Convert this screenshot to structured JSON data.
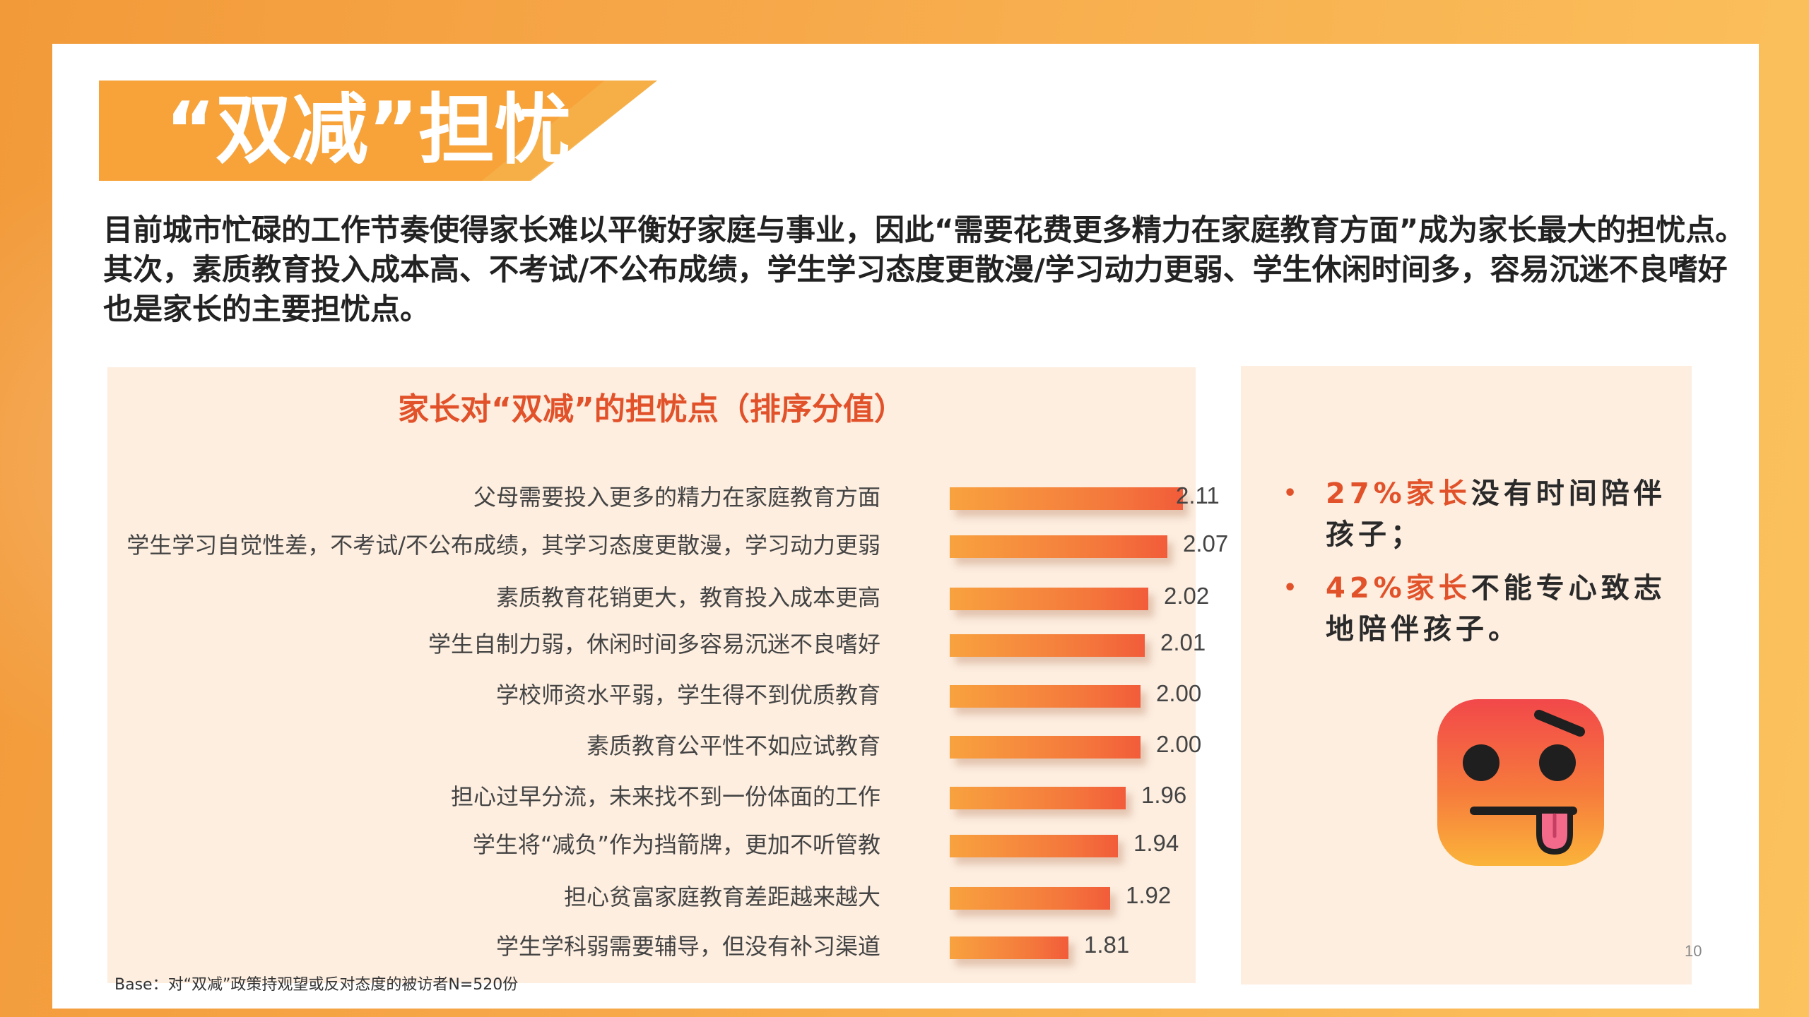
{
  "slide": {
    "title": "“双减”担忧",
    "intro": "目前城市忙碌的工作节奏使得家长难以平衡好家庭与事业，因此“需要花费更多精力在家庭教育方面”成为家长最大的担忧点。其次，素质教育投入成本高、不考试/不公布成绩，学生学习态度更散漫/学习动力更弱、学生休闲时间多，容易沉迷不良嗜好也是家长的主要担忧点。",
    "footnote": "Base：对“双减”政策持观望或反对态度的被访者N=520份",
    "page_number": "10",
    "colors": {
      "accent": "#e2522a",
      "banner": "#f7a33a",
      "panel_bg": "#fdeee0",
      "bar_start": "#f8a23f",
      "bar_end": "#f25c3a"
    }
  },
  "side_panel": {
    "items": [
      {
        "bullet": "•",
        "highlight": "27%家长",
        "rest": "没有时间陪伴孩子；"
      },
      {
        "bullet": "•",
        "highlight": "42%家长",
        "rest": "不能专心致志地陪伴孩子。"
      }
    ],
    "emoji_icon": "dizzy-tongue-out-face-icon"
  },
  "chart_data": {
    "type": "bar",
    "orientation": "horizontal",
    "title": "家长对“双减”的担忧点（排序分值）",
    "categories": [
      "父母需要投入更多的精力在家庭教育方面",
      "学生学习自觉性差，不考试/不公布成绩，其学习态度更散漫，学习动力更弱",
      "素质教育花销更大，教育投入成本更高",
      "学生自制力弱，休闲时间多容易沉迷不良嗜好",
      "学校师资水平弱，学生得不到优质教育",
      "素质教育公平性不如应试教育",
      "担心过早分流，未来找不到一份体面的工作",
      "学生将“减负”作为挡箭牌，更加不听管教",
      "担心贫富家庭教育差距越来越大",
      "学生学科弱需要辅导，但没有补习渠道"
    ],
    "values": [
      2.11,
      2.07,
      2.02,
      2.01,
      2.0,
      2.0,
      1.96,
      1.94,
      1.92,
      1.81
    ],
    "value_labels": [
      "2.11",
      "2.07",
      "2.02",
      "2.01",
      "2.00",
      "2.00",
      "1.96",
      "1.94",
      "1.92",
      "1.81"
    ],
    "xlim": [
      1.5,
      2.11
    ],
    "grid": false,
    "legend": "none"
  }
}
